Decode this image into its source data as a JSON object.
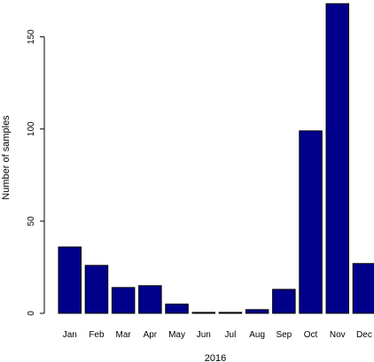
{
  "chart_data": {
    "type": "bar",
    "categories": [
      "Jan",
      "Feb",
      "Mar",
      "Apr",
      "May",
      "Jun",
      "Jul",
      "Aug",
      "Sep",
      "Oct",
      "Nov",
      "Dec"
    ],
    "values": [
      36,
      26,
      14,
      15,
      5,
      0.5,
      0.5,
      2,
      13,
      99,
      168,
      27
    ],
    "xlabel": "2016",
    "ylabel": "Number of samples",
    "ylim": [
      0,
      170
    ],
    "yticks": [
      0,
      50,
      100,
      150
    ],
    "bar_color": "#00008b",
    "grid": false
  }
}
